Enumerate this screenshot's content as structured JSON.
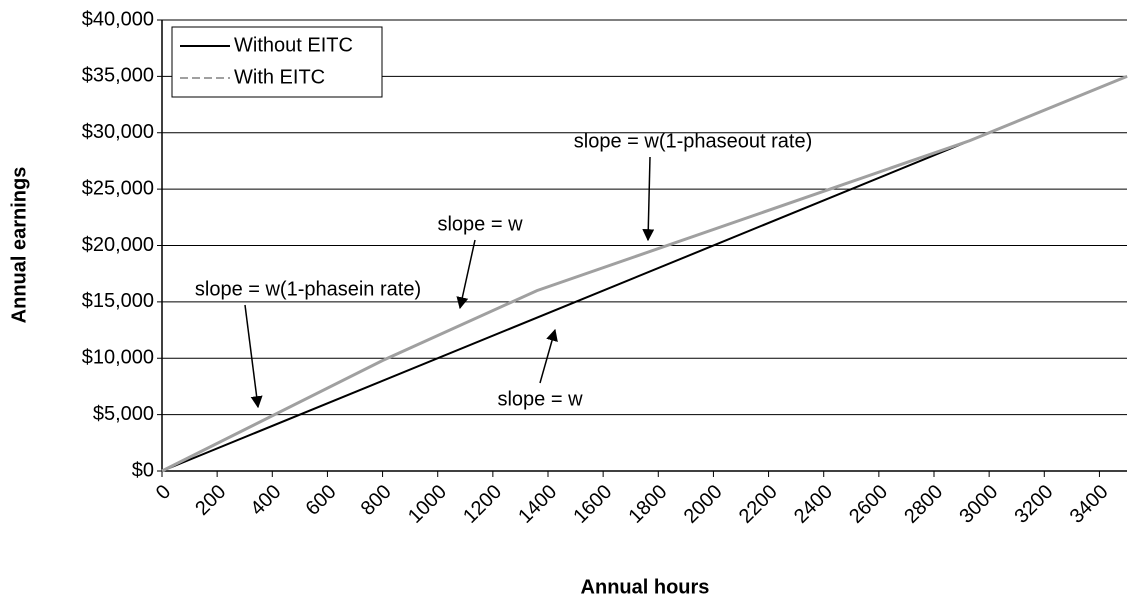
{
  "chart_data": {
    "type": "line",
    "xlabel": "Annual hours",
    "ylabel": "Annual earnings",
    "series": [
      {
        "name": "Without EITC",
        "color": "#000000",
        "dash": false,
        "x": [
          0,
          3500
        ],
        "values": [
          0,
          35000
        ]
      },
      {
        "name": "With EITC",
        "color": "#a0a0a0",
        "dash": true,
        "x": [
          0,
          800,
          1360,
          2930,
          3500
        ],
        "values": [
          0,
          9800,
          16000,
          29300,
          35000
        ]
      }
    ],
    "xlim": [
      0,
      3500
    ],
    "xticks": [
      0,
      200,
      400,
      600,
      800,
      1000,
      1200,
      1400,
      1600,
      1800,
      2000,
      2200,
      2400,
      2600,
      2800,
      3000,
      3200,
      3400
    ],
    "ylim": [
      0,
      40000
    ],
    "yticks": [
      {
        "value": 0,
        "label": "$0"
      },
      {
        "value": 5000,
        "label": "$5,000"
      },
      {
        "value": 10000,
        "label": "$10,000"
      },
      {
        "value": 15000,
        "label": "$15,000"
      },
      {
        "value": 20000,
        "label": "$20,000"
      },
      {
        "value": 25000,
        "label": "$25,000"
      },
      {
        "value": 30000,
        "label": "$30,000"
      },
      {
        "value": 35000,
        "label": "$35,000"
      },
      {
        "value": 40000,
        "label": "$40,000"
      }
    ],
    "grid": true,
    "legend": "top-left",
    "annotations": [
      "slope = w(1-phaseout rate)",
      "slope = w",
      "slope = w(1-phasein rate)",
      "slope = w"
    ]
  }
}
